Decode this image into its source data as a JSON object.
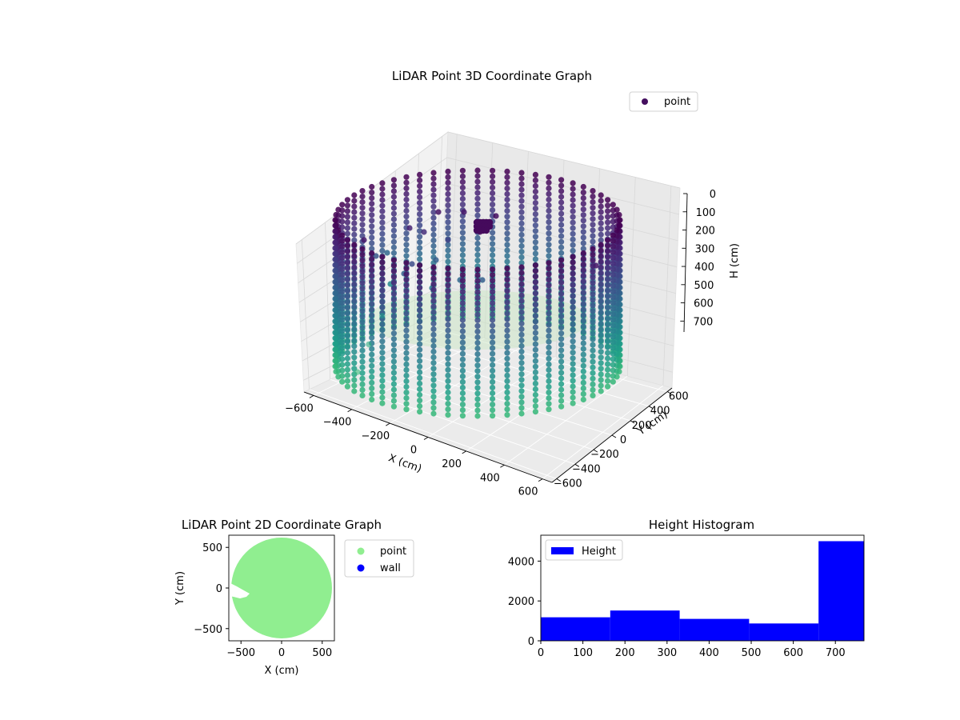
{
  "chart_data": [
    {
      "type": "scatter",
      "projection": "3d",
      "title": "LiDAR Point 3D Coordinate Graph",
      "xlabel": "X (cm)",
      "ylabel": "Y (cm)",
      "zlabel": "H (cm)",
      "xlim": [
        -650,
        650
      ],
      "ylim": [
        -650,
        650
      ],
      "zlim": [
        0,
        760
      ],
      "zaxis_inverted": true,
      "xticks": [
        "−600",
        "−400",
        "−200",
        "0",
        "200",
        "400",
        "600"
      ],
      "yticks": [
        "−600",
        "−400",
        "−200",
        "0",
        "200",
        "400",
        "600"
      ],
      "zticks": [
        "0",
        "100",
        "200",
        "300",
        "400",
        "500",
        "600",
        "700"
      ],
      "colormap": "viridis",
      "legend": {
        "location": "upper right",
        "entries": [
          {
            "label": "point",
            "color": "#440f5e"
          }
        ]
      },
      "series": [
        {
          "name": "point",
          "shape": "cylindrical wall of scan columns",
          "radius_cm": 600,
          "height_range_cm": [
            0,
            760
          ],
          "column_count": 60,
          "outliers": [
            {
              "x": -640,
              "y": 80,
              "h": 560
            },
            {
              "x": -600,
              "y": -120,
              "h": 640
            },
            {
              "x": -560,
              "y": -300,
              "h": 720
            }
          ]
        }
      ],
      "grid": true
    },
    {
      "type": "scatter",
      "title": "LiDAR Point 2D Coordinate Graph",
      "xlabel": "X (cm)",
      "ylabel": "Y (cm)",
      "xlim": [
        -650,
        650
      ],
      "ylim": [
        -650,
        650
      ],
      "xticks": [
        -500,
        0,
        500
      ],
      "yticks": [
        -500,
        0,
        500
      ],
      "legend": {
        "location": "outside right",
        "entries": [
          {
            "label": "point",
            "color": "#90ee90"
          },
          {
            "label": "wall",
            "color": "#0000ff"
          }
        ]
      },
      "series": [
        {
          "name": "point",
          "color": "#90ee90",
          "shape": "filled disc",
          "center": [
            0,
            0
          ],
          "radius_cm": 620
        }
      ]
    },
    {
      "type": "bar",
      "histogram": true,
      "title": "Height Histogram",
      "xlabel": "",
      "ylabel": "",
      "xlim": [
        0,
        768
      ],
      "ylim": [
        0,
        5300
      ],
      "xticks": [
        0,
        100,
        200,
        300,
        400,
        500,
        600,
        700
      ],
      "yticks": [
        0,
        2000,
        4000
      ],
      "legend": {
        "location": "upper left",
        "entries": [
          {
            "label": "Height",
            "color": "#0000ff"
          }
        ]
      },
      "bins": [
        {
          "start": 0,
          "end": 165,
          "count": 1180
        },
        {
          "start": 165,
          "end": 330,
          "count": 1520
        },
        {
          "start": 330,
          "end": 495,
          "count": 1100
        },
        {
          "start": 495,
          "end": 660,
          "count": 870
        },
        {
          "start": 660,
          "end": 768,
          "count": 5000
        }
      ],
      "series": [
        {
          "name": "Height",
          "color": "#0000ff"
        }
      ]
    }
  ]
}
